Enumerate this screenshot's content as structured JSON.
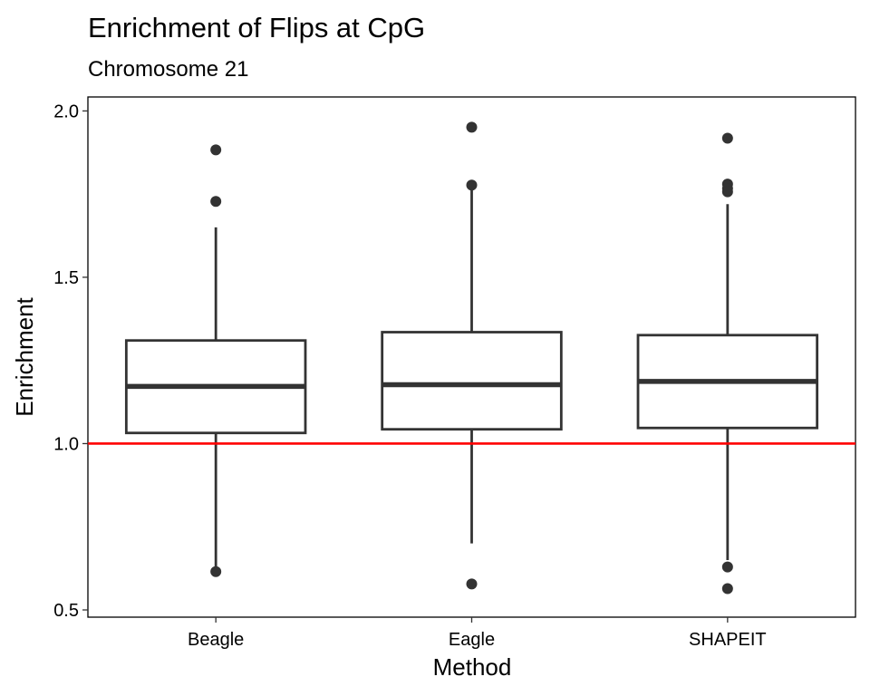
{
  "chart_data": {
    "type": "box",
    "title": "Enrichment of Flips at CpG",
    "subtitle": "Chromosome 21",
    "xlabel": "Method",
    "ylabel": "Enrichment",
    "ylim": [
      0.5,
      2.0
    ],
    "yticks": [
      "0.5",
      "1.0",
      "1.5",
      "2.0"
    ],
    "grid": false,
    "reference_line": {
      "y": 1.0,
      "color": "#ff0000"
    },
    "categories": [
      "Beagle",
      "Eagle",
      "SHAPEIT"
    ],
    "boxes": [
      {
        "name": "Beagle",
        "whisker_low": 0.63,
        "q1": 1.032,
        "median": 1.172,
        "q3": 1.31,
        "whisker_high": 1.65,
        "outliers": [
          1.883,
          1.728,
          0.615
        ]
      },
      {
        "name": "Eagle",
        "whisker_low": 0.7,
        "q1": 1.043,
        "median": 1.177,
        "q3": 1.335,
        "whisker_high": 1.77,
        "outliers": [
          1.951,
          1.777,
          0.578
        ]
      },
      {
        "name": "SHAPEIT",
        "whisker_low": 0.65,
        "q1": 1.047,
        "median": 1.187,
        "q3": 1.326,
        "whisker_high": 1.72,
        "outliers": [
          1.918,
          1.78,
          1.767,
          1.757,
          0.629,
          0.564
        ]
      }
    ],
    "colors": {
      "box": "#333333",
      "reference": "#ff0000",
      "outlier": "#333333"
    }
  }
}
